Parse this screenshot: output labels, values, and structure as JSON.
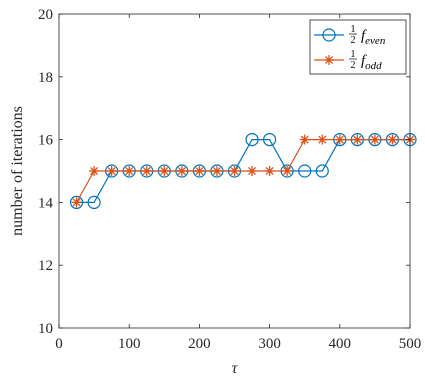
{
  "chart_data": {
    "type": "line",
    "xlabel": "τ",
    "ylabel": "number of iterations",
    "xlim": [
      0,
      500
    ],
    "ylim": [
      10,
      20
    ],
    "xticks": [
      0,
      100,
      200,
      300,
      400,
      500
    ],
    "yticks": [
      10,
      12,
      14,
      16,
      18,
      20
    ],
    "grid": false,
    "legend_position": "top-right",
    "x": [
      25,
      50,
      75,
      100,
      125,
      150,
      175,
      200,
      225,
      250,
      275,
      300,
      325,
      350,
      375,
      400,
      425,
      450,
      475,
      500
    ],
    "series": [
      {
        "name": "1/2 f_even",
        "legend_fraction": "1/2",
        "legend_symbol": "f",
        "legend_subscript": "even",
        "color": "#0072BD",
        "marker": "circle",
        "values": [
          14,
          14,
          15,
          15,
          15,
          15,
          15,
          15,
          15,
          15,
          16,
          16,
          15,
          15,
          15,
          16,
          16,
          16,
          16,
          16
        ]
      },
      {
        "name": "1/2 f_odd",
        "legend_fraction": "1/2",
        "legend_symbol": "f",
        "legend_subscript": "odd",
        "color": "#D95319",
        "marker": "asterisk",
        "values": [
          14,
          15,
          15,
          15,
          15,
          15,
          15,
          15,
          15,
          15,
          15,
          15,
          15,
          16,
          16,
          16,
          16,
          16,
          16,
          16
        ]
      }
    ]
  }
}
